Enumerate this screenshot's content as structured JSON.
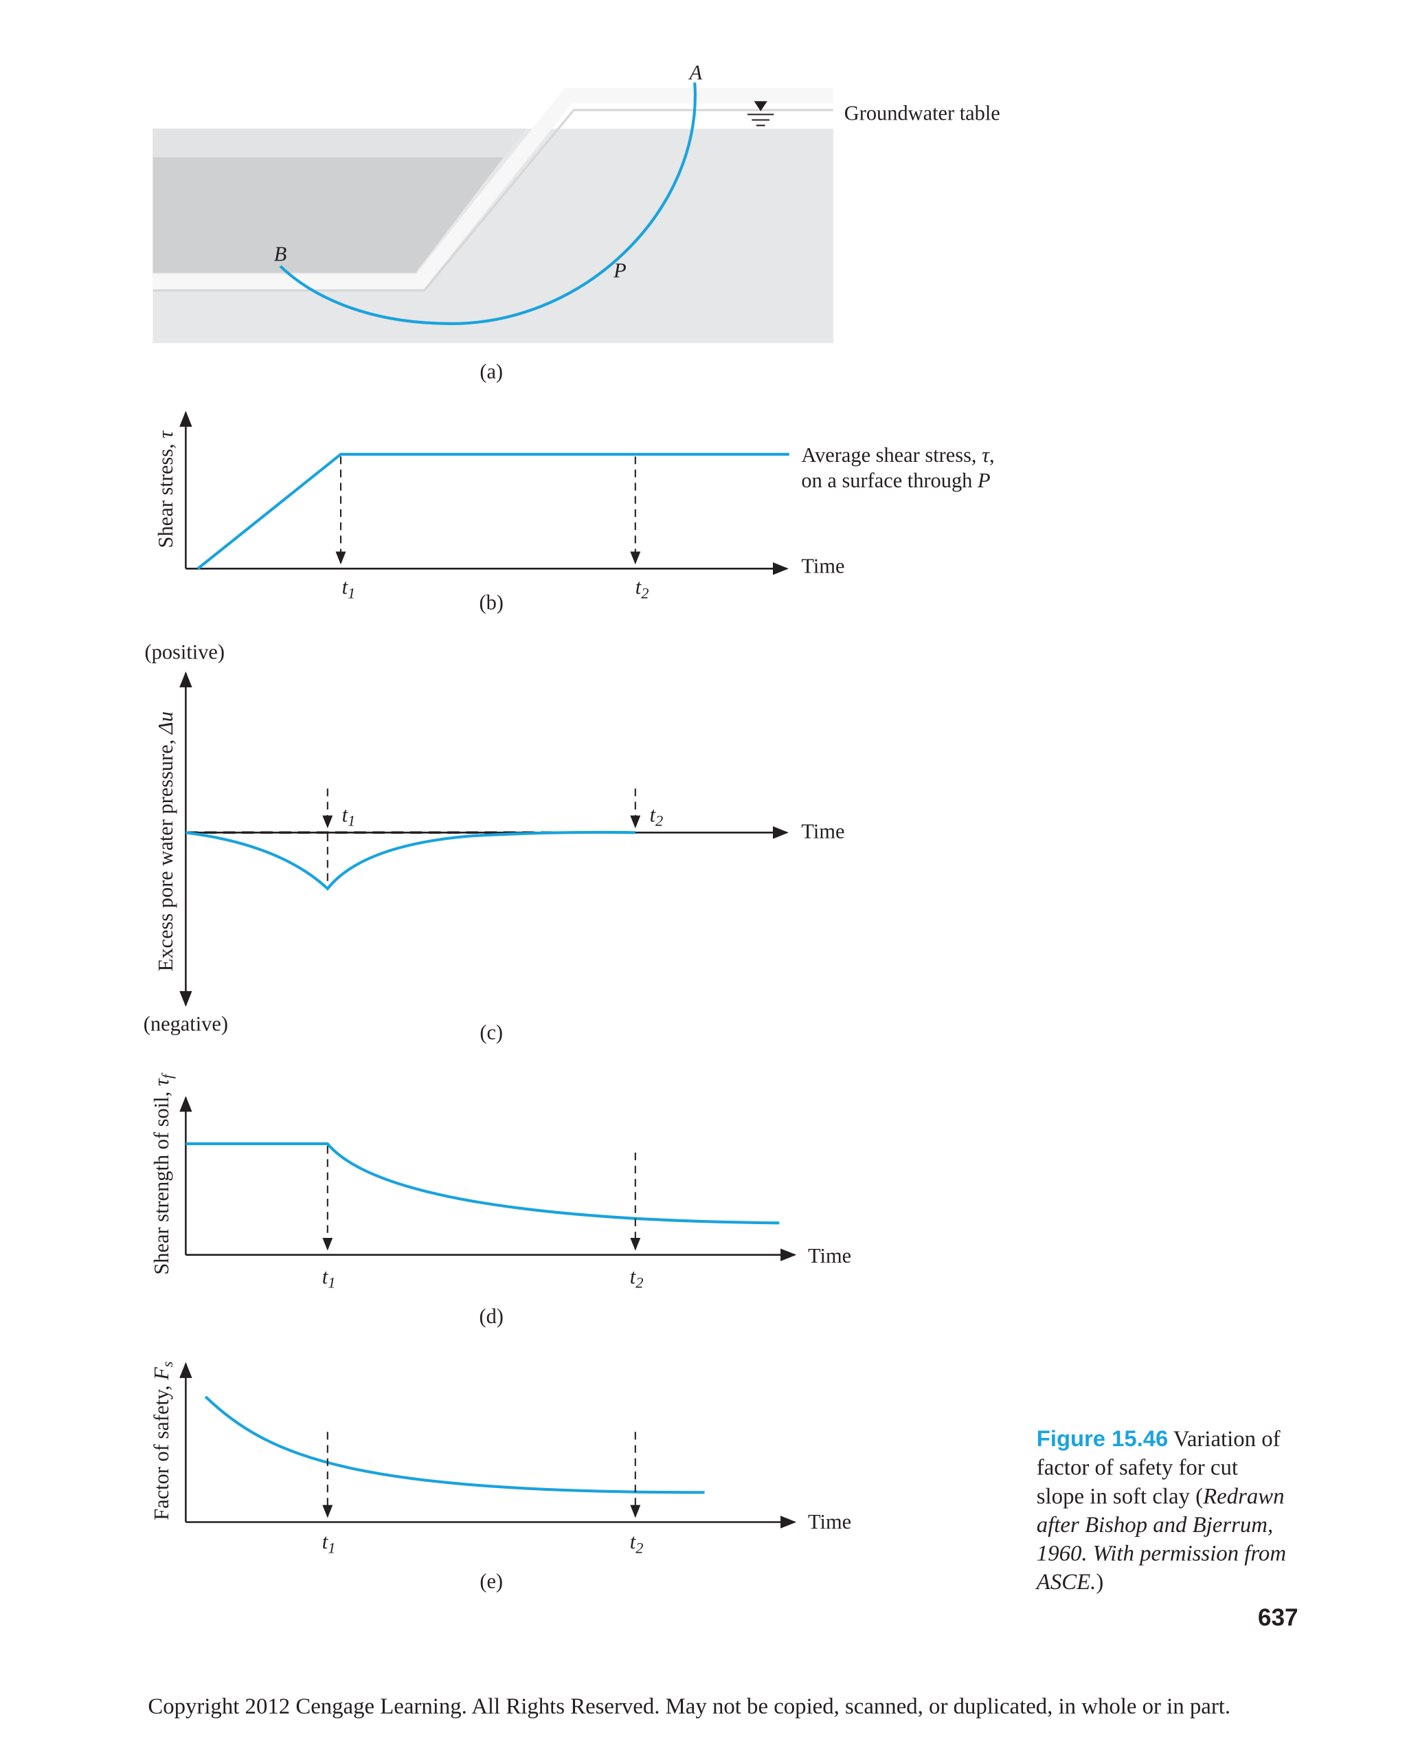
{
  "panel_a": {
    "label": "(a)",
    "point_a": "A",
    "point_b": "B",
    "point_p": "P",
    "groundwater": "Groundwater table"
  },
  "panel_b": {
    "label": "(b)",
    "y_axis": [
      "Shear stress, ",
      "τ"
    ],
    "x_axis": "Time",
    "annotation": [
      [
        "Average shear stress, ",
        "τ",
        ","
      ],
      [
        "on a surface through ",
        "P"
      ]
    ],
    "t1": [
      "t",
      "1"
    ],
    "t2": [
      "t",
      "2"
    ]
  },
  "panel_c": {
    "label": "(c)",
    "y_axis": [
      "Excess pore water pressure, ",
      "Δu"
    ],
    "x_axis": "Time",
    "positive": "(positive)",
    "negative": "(negative)",
    "t1": [
      "t",
      "1"
    ],
    "t2": [
      "t",
      "2"
    ]
  },
  "panel_d": {
    "label": "(d)",
    "y_axis": [
      "Shear strength of soil, ",
      "τ",
      "f"
    ],
    "x_axis": "Time",
    "t1": [
      "t",
      "1"
    ],
    "t2": [
      "t",
      "2"
    ]
  },
  "panel_e": {
    "label": "(e)",
    "y_axis": [
      "Factor of safety, ",
      "F",
      "s"
    ],
    "x_axis": "Time",
    "t1": [
      "t",
      "1"
    ],
    "t2": [
      "t",
      "2"
    ]
  },
  "caption": {
    "figure": "Figure 15.46",
    "lines": [
      [
        " Variation of"
      ],
      [
        "factor of safety for cut"
      ],
      [
        "slope in soft clay (",
        "Redrawn"
      ],
      [
        "after Bishop and Bjerrum,"
      ],
      [
        "1960. With permission from"
      ],
      [
        "ASCE.",
        ")"
      ]
    ]
  },
  "page_number": "637",
  "copyright": "Copyright 2012 Cengage Learning. All Rights Reserved. May not be copied, scanned, or duplicated, in whole or in part."
}
